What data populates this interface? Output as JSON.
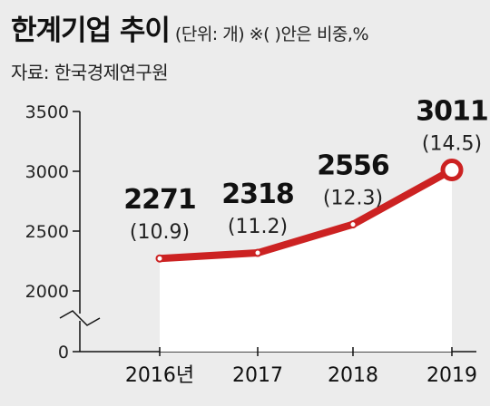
{
  "header": {
    "title": "한계기업 추이",
    "subtitle": "(단위: 개)  ※(  )안은 비중,%",
    "source": "자료: 한국경제연구원"
  },
  "colors": {
    "line": "#cc2222",
    "point_fill": "#ffffff",
    "plot_area": "#ffffff",
    "background": "#ececec"
  },
  "chart_data": {
    "type": "area",
    "title": "한계기업 추이",
    "unit": "개",
    "categories": [
      "2016년",
      "2017",
      "2018",
      "2019"
    ],
    "series": [
      {
        "name": "",
        "values": [
          2271,
          2318,
          2556,
          3011
        ],
        "value_labels": [
          "2271",
          "2318",
          "2556",
          "3011"
        ],
        "share_labels": [
          "(10.9)",
          "(11.2)",
          "(12.3)",
          "(14.5)"
        ]
      }
    ],
    "share_percent": [
      10.9,
      11.2,
      12.3,
      14.5
    ],
    "yticks": [
      "3500",
      "3000",
      "2500",
      "2000",
      "0"
    ],
    "ylim": [
      2000,
      3500
    ],
    "axis_break": true,
    "grid": false
  }
}
